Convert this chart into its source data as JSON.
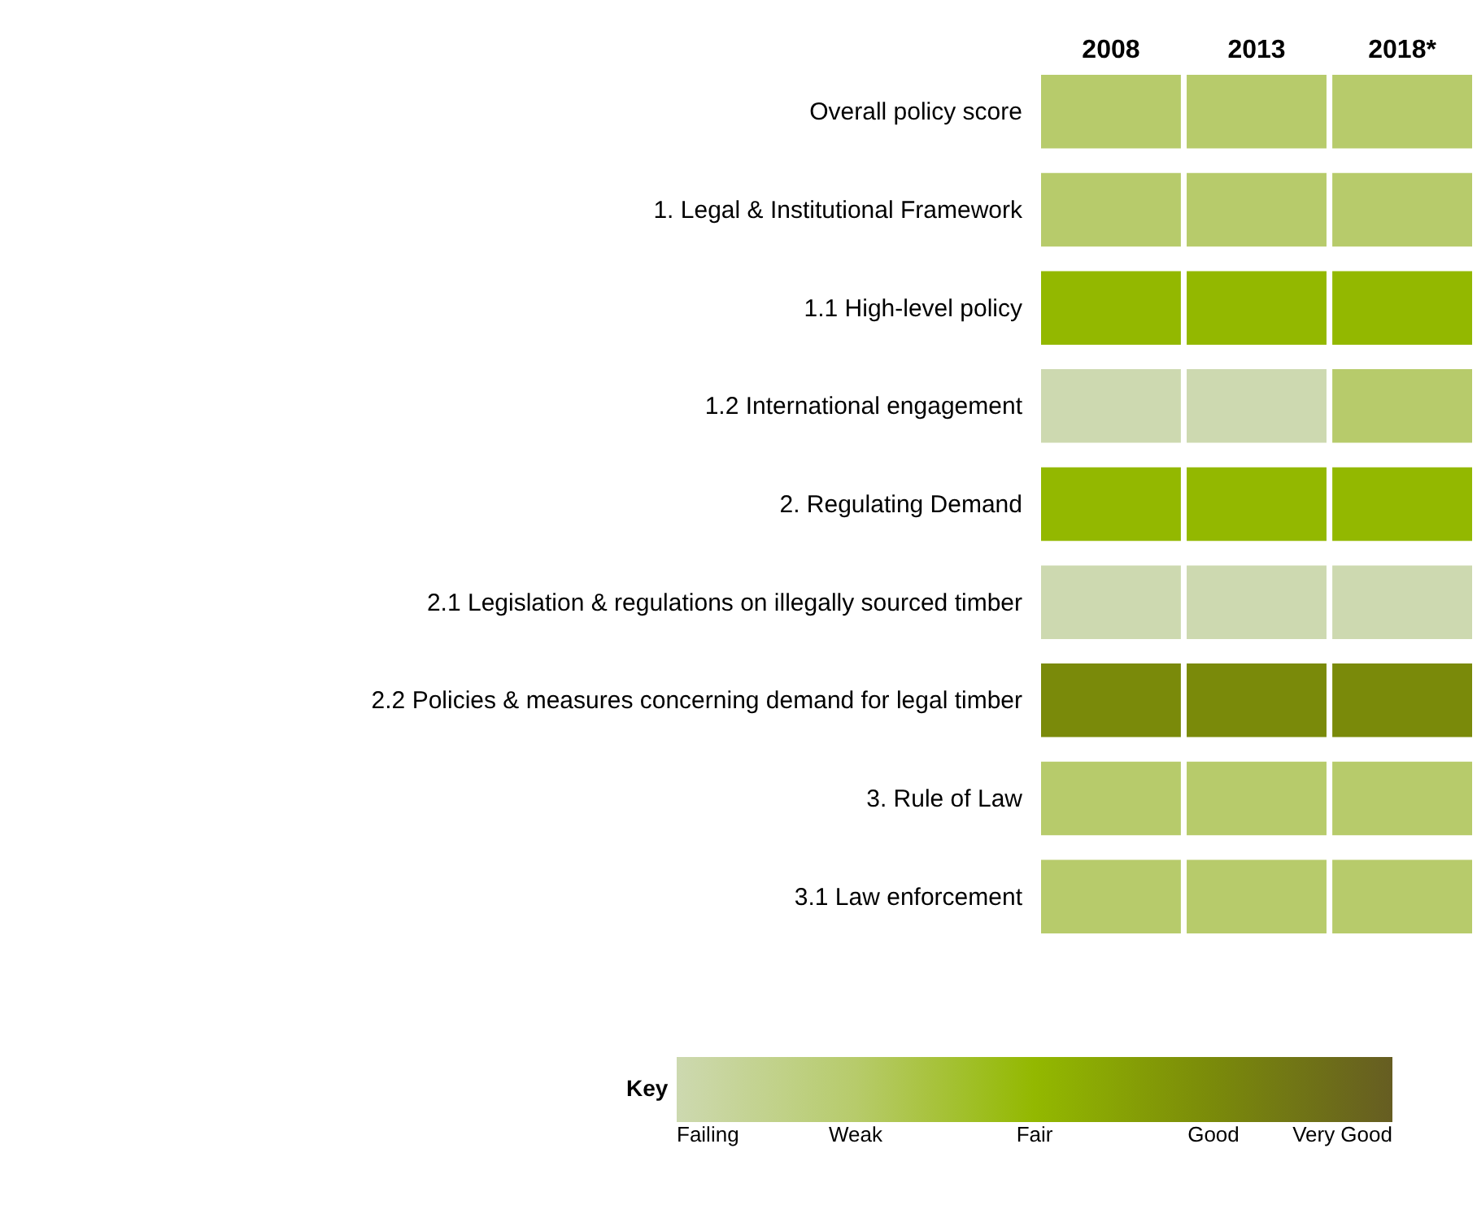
{
  "chart_data": {
    "type": "heatmap",
    "categories": [
      "2008",
      "2013",
      "2018*"
    ],
    "y_categories": [
      "Overall policy score",
      "1. Legal & Institutional Framework",
      "1.1 High-level policy",
      "1.2 International engagement",
      "2. Regulating Demand",
      "2.1 Legislation & regulations on illegally sourced timber",
      "2.2 Policies & measures concerning demand for legal timber",
      "3. Rule of Law",
      "3.1 Law enforcement"
    ],
    "cells": [
      [
        2,
        2,
        2
      ],
      [
        2,
        2,
        2
      ],
      [
        3,
        3,
        3
      ],
      [
        1,
        1,
        2
      ],
      [
        3,
        3,
        3
      ],
      [
        1,
        1,
        1
      ],
      [
        4,
        4,
        4
      ],
      [
        2,
        2,
        2
      ],
      [
        2,
        2,
        2
      ]
    ],
    "clabel": "Key",
    "cticks": [
      {
        "value": 1,
        "label": "Failing"
      },
      {
        "value": 2,
        "label": "Weak"
      },
      {
        "value": 3,
        "label": "Fair"
      },
      {
        "value": 4,
        "label": "Good"
      },
      {
        "value": 5,
        "label": "Very Good"
      }
    ],
    "clim": [
      1,
      5
    ],
    "colors": [
      "#cdd9b0",
      "#b7cb6b",
      "#93b800",
      "#7a8a0a",
      "#665d22"
    ]
  }
}
